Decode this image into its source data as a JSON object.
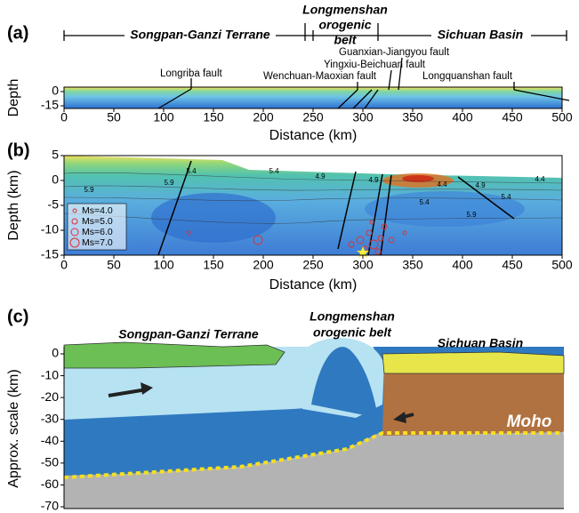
{
  "panel_a": {
    "label": "(a)",
    "terranes": [
      "Songpan-Ganzi Terrane",
      "Longmenshan",
      "orogenic",
      "belt",
      "Sichuan Basin"
    ],
    "faults": [
      "Longriba fault",
      "Wenchuan-Maoxian fault",
      "Yingxiu-Beichuan fault",
      "Guanxian-Jiangyou fault",
      "Longquanshan fault"
    ],
    "y_label": "Depth",
    "yticks": [
      0,
      -15
    ],
    "xticks": [
      0,
      50,
      100,
      150,
      200,
      250,
      300,
      350,
      400,
      450,
      500
    ],
    "x_label": "Distance (km)"
  },
  "panel_b": {
    "label": "(b)",
    "y_label": "Depth (km)",
    "yticks": [
      5,
      0,
      -5,
      -10,
      -15
    ],
    "xticks": [
      0,
      50,
      100,
      150,
      200,
      250,
      300,
      350,
      400,
      450,
      500
    ],
    "x_label": "Distance (km)",
    "legend": [
      "Ms=4.0",
      "Ms=5.0",
      "Ms=6.0",
      "Ms=7.0"
    ],
    "contour_labels": [
      "5.4",
      "5.9",
      "5.9",
      "5.4",
      "4.9",
      "4.9",
      "4.4",
      "4.9",
      "5.4",
      "5.4",
      "5.9",
      "4.4"
    ]
  },
  "panel_c": {
    "label": "(c)",
    "y_label": "Approx. scale (km)",
    "yticks": [
      0,
      -10,
      -20,
      -30,
      -40,
      -50,
      -60,
      -70
    ],
    "titles": [
      "Songpan-Ganzi Terrane",
      "Longmenshan",
      "orogenic belt",
      "Sichuan Basin",
      "Moho"
    ]
  }
}
